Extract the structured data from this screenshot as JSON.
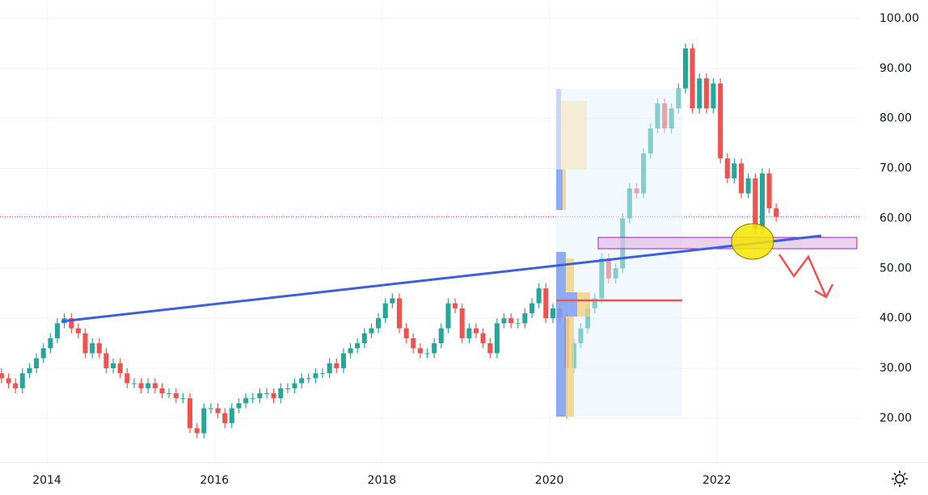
{
  "chart_data": {
    "type": "candlestick",
    "x": [
      2013.458,
      2013.542,
      2013.625,
      2013.708,
      2013.792,
      2013.875,
      2013.958,
      2014.042,
      2014.125,
      2014.208,
      2014.292,
      2014.375,
      2014.458,
      2014.542,
      2014.625,
      2014.708,
      2014.792,
      2014.875,
      2014.958,
      2015.042,
      2015.125,
      2015.208,
      2015.292,
      2015.375,
      2015.458,
      2015.542,
      2015.625,
      2015.708,
      2015.792,
      2015.875,
      2015.958,
      2016.042,
      2016.125,
      2016.208,
      2016.292,
      2016.375,
      2016.458,
      2016.542,
      2016.625,
      2016.708,
      2016.792,
      2016.875,
      2016.958,
      2017.042,
      2017.125,
      2017.208,
      2017.292,
      2017.375,
      2017.458,
      2017.542,
      2017.625,
      2017.708,
      2017.792,
      2017.875,
      2017.958,
      2018.042,
      2018.125,
      2018.208,
      2018.292,
      2018.375,
      2018.458,
      2018.542,
      2018.625,
      2018.708,
      2018.792,
      2018.875,
      2018.958,
      2019.042,
      2019.125,
      2019.208,
      2019.292,
      2019.375,
      2019.458,
      2019.542,
      2019.625,
      2019.708,
      2019.792,
      2019.875,
      2019.958,
      2020.042,
      2020.125,
      2020.208,
      2020.292,
      2020.375,
      2020.458,
      2020.542,
      2020.625,
      2020.708,
      2020.792,
      2020.875,
      2020.958,
      2021.042,
      2021.125,
      2021.208,
      2021.292,
      2021.375,
      2021.458,
      2021.542,
      2021.625,
      2021.708,
      2021.792,
      2021.875,
      2021.958,
      2022.042,
      2022.125,
      2022.208,
      2022.292,
      2022.375,
      2022.458,
      2022.542,
      2022.625,
      2022.708
    ],
    "open": [
      29,
      28,
      27,
      26,
      29,
      30,
      32,
      34,
      36,
      39,
      40,
      38,
      37,
      33,
      35,
      33,
      30,
      31,
      29,
      27,
      27,
      26,
      27,
      26,
      25,
      25,
      24,
      24,
      18,
      17,
      22,
      22,
      21,
      19,
      22,
      23,
      24,
      24,
      25,
      25,
      24,
      26,
      26,
      27,
      28,
      28,
      29,
      29,
      31,
      30,
      33,
      34,
      35,
      37,
      38,
      40,
      43,
      44,
      38,
      36,
      34,
      33,
      33,
      35,
      38,
      43,
      42,
      36,
      38,
      37,
      35,
      33,
      39,
      40,
      39,
      39,
      41,
      43,
      46,
      40,
      42,
      40,
      30,
      35,
      38,
      42,
      44,
      52,
      48,
      50,
      60,
      66,
      65,
      73,
      78,
      83,
      78,
      82,
      86,
      94,
      82,
      88,
      82,
      87,
      72,
      68,
      71,
      65,
      68,
      58,
      69,
      62
    ],
    "high": [
      30,
      29,
      28,
      30,
      31,
      33,
      35,
      37,
      40,
      41,
      41,
      39,
      38,
      36,
      36,
      34,
      32,
      32,
      30,
      28,
      28,
      28,
      28,
      27,
      26,
      26,
      25,
      25,
      19,
      23,
      23,
      23,
      22,
      23,
      24,
      25,
      25,
      26,
      26,
      26,
      27,
      27,
      28,
      29,
      29,
      30,
      30,
      32,
      32,
      34,
      35,
      36,
      38,
      39,
      41,
      44,
      45,
      45,
      39,
      37,
      35,
      34,
      36,
      39,
      44,
      44,
      43,
      39,
      39,
      38,
      36,
      40,
      41,
      41,
      40,
      42,
      44,
      47,
      47,
      43,
      43,
      41,
      36,
      39,
      43,
      45,
      53,
      53,
      51,
      61,
      67,
      67,
      74,
      79,
      84,
      84,
      83,
      87,
      95,
      95,
      89,
      89,
      88,
      88,
      73,
      72,
      72,
      69,
      69,
      70,
      70,
      63
    ],
    "low": [
      27,
      26,
      25,
      25,
      28,
      29,
      31,
      33,
      35,
      38,
      37,
      36,
      32,
      32,
      32,
      29,
      29,
      28,
      26,
      26,
      25,
      25,
      25,
      24,
      24,
      23,
      23,
      17,
      16,
      16,
      21,
      20,
      18,
      18,
      21,
      22,
      23,
      23,
      24,
      23,
      23,
      25,
      25,
      26,
      27,
      27,
      28,
      28,
      29,
      29,
      32,
      33,
      34,
      36,
      37,
      39,
      42,
      37,
      35,
      33,
      32,
      32,
      32,
      34,
      37,
      41,
      35,
      35,
      36,
      34,
      32,
      32,
      38,
      38,
      38,
      38,
      40,
      42,
      39,
      39,
      39,
      20,
      29,
      34,
      37,
      41,
      43,
      47,
      47,
      49,
      59,
      64,
      64,
      72,
      77,
      77,
      77,
      81,
      85,
      81,
      81,
      81,
      81,
      71,
      67,
      67,
      64,
      64,
      57,
      57,
      61,
      59.3
    ],
    "close": [
      28,
      27,
      26,
      29,
      30,
      32,
      34,
      36,
      39,
      40,
      38,
      37,
      33,
      35,
      33,
      30,
      31,
      29,
      27,
      27,
      26,
      27,
      26,
      25,
      25,
      24,
      24,
      18,
      17,
      22,
      22,
      21,
      19,
      22,
      23,
      24,
      24,
      25,
      25,
      24,
      26,
      26,
      27,
      28,
      28,
      29,
      29,
      31,
      30,
      33,
      34,
      35,
      37,
      38,
      40,
      43,
      44,
      38,
      36,
      34,
      33,
      33,
      35,
      38,
      43,
      42,
      36,
      38,
      37,
      35,
      33,
      39,
      40,
      39,
      39,
      41,
      43,
      46,
      40,
      42,
      40,
      30,
      35,
      38,
      42,
      44,
      52,
      48,
      50,
      60,
      66,
      65,
      73,
      78,
      83,
      78,
      82,
      86,
      94,
      82,
      88,
      82,
      87,
      72,
      68,
      71,
      65,
      68,
      58,
      69,
      62,
      60.3
    ],
    "up_color": "#26a69a",
    "down_color": "#ef5350",
    "xlim": [
      2013.44,
      2023.72
    ],
    "xticks": [
      2014,
      2016,
      2018,
      2020,
      2022
    ],
    "ylim": [
      11.1,
      103.7
    ],
    "yticks": [
      {
        "value": 20,
        "label": "20.00"
      },
      {
        "value": 30,
        "label": "30.00"
      },
      {
        "value": 40,
        "label": "40.00"
      },
      {
        "value": 50,
        "label": "50.00"
      },
      {
        "value": 60,
        "label": "60.00"
      },
      {
        "value": 70,
        "label": "70.00"
      },
      {
        "value": 80,
        "label": "80.00"
      },
      {
        "value": 90,
        "label": "90.00"
      },
      {
        "value": 100,
        "label": "100.00"
      }
    ],
    "grid": true
  }
}
